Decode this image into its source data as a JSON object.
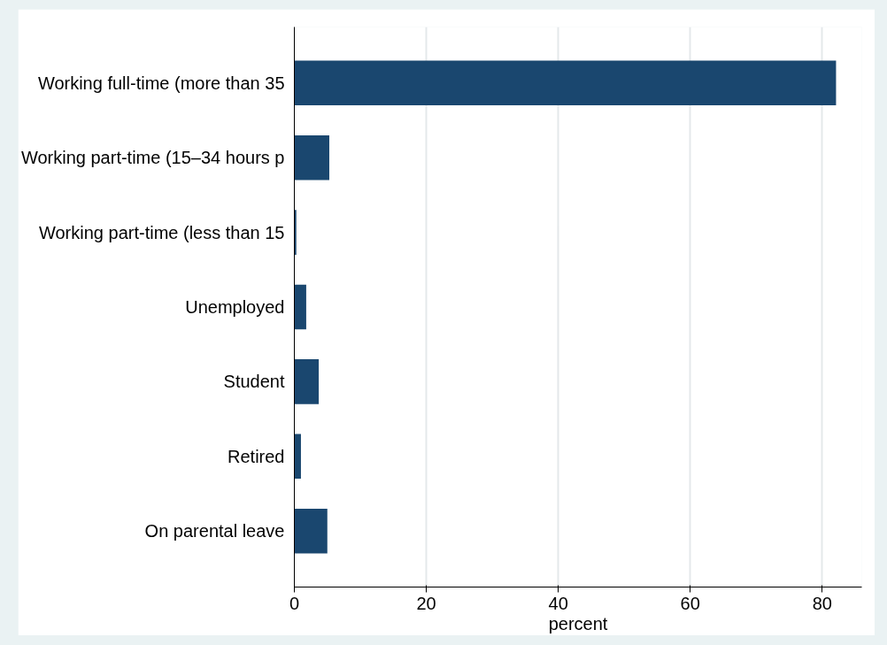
{
  "chart_data": {
    "type": "bar",
    "orientation": "horizontal",
    "categories": [
      "Working full-time (more than 35",
      "Working part-time (15–34 hours p",
      "Working part-time (less than 15",
      "Unemployed",
      "Student",
      "Retired",
      "On parental leave"
    ],
    "values": [
      82.1,
      5.3,
      0.3,
      1.8,
      3.7,
      1.0,
      5.0
    ],
    "color": "#1a476f",
    "xlabel": "percent",
    "xlim": [
      0,
      86
    ],
    "xticks": [
      0,
      20,
      40,
      60,
      80
    ],
    "grid": "x"
  }
}
